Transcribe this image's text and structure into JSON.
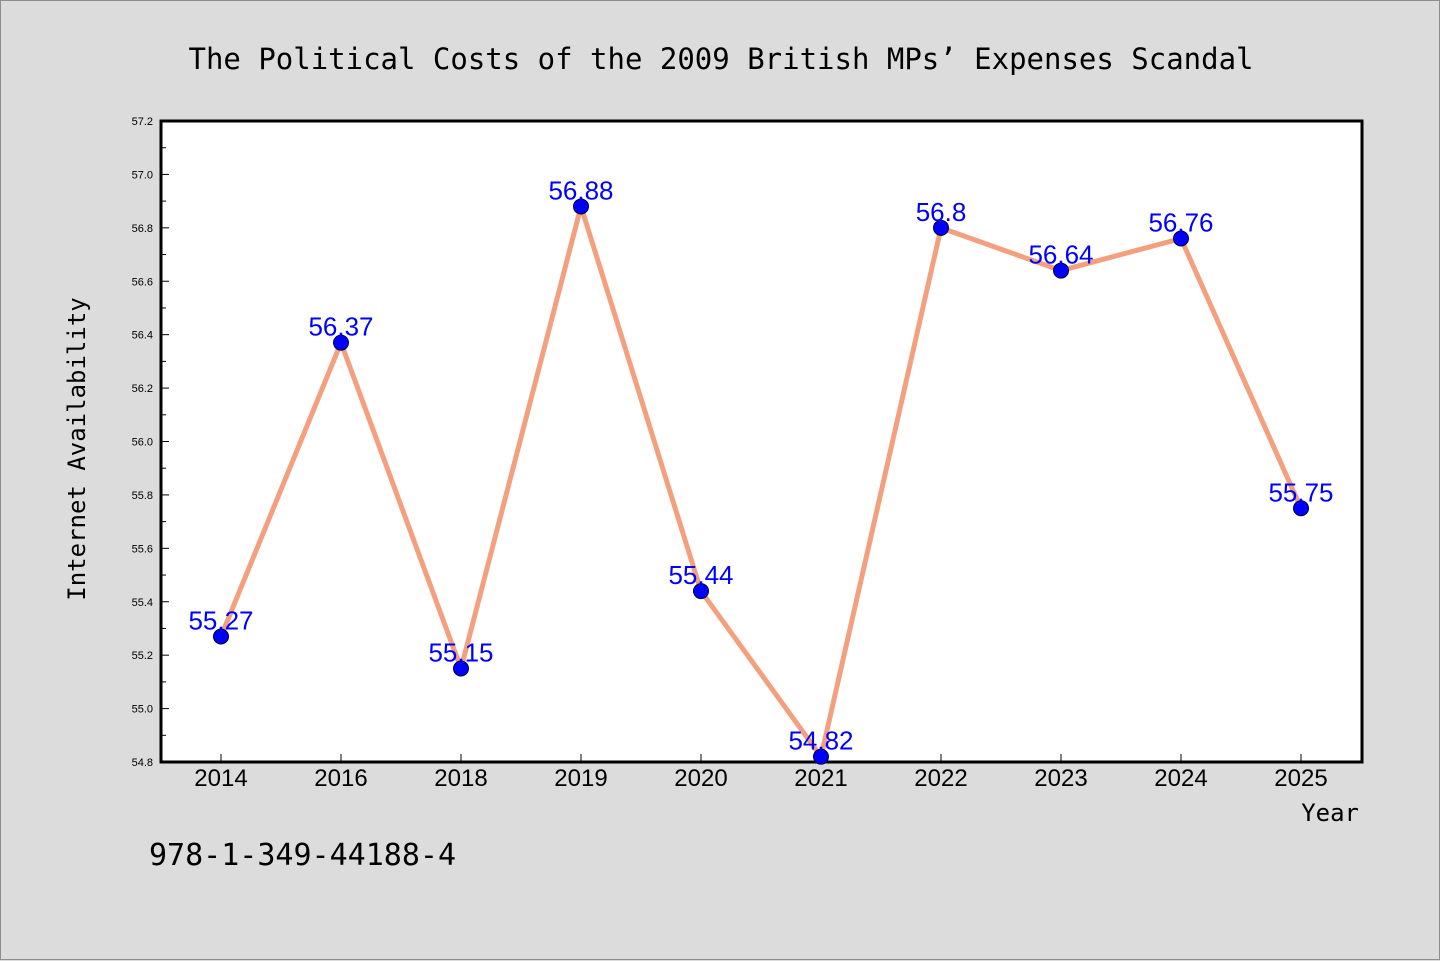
{
  "footer": {
    "code": "978-1-349-44188-4"
  },
  "colors": {
    "line": "#f4a07f",
    "marker": "#0000ff",
    "data_label": "#0000ff",
    "plot_background": "#ffffff",
    "page_background": "#dcdcdc"
  },
  "chart_data": {
    "type": "line",
    "title": "The Political Costs of the 2009 British MPs’ Expenses Scandal",
    "xlabel": "Year",
    "ylabel": "Internet Availability",
    "categories": [
      "2014",
      "2016",
      "2018",
      "2019",
      "2020",
      "2021",
      "2022",
      "2023",
      "2024",
      "2025"
    ],
    "series": [
      {
        "values": [
          55.27,
          56.37,
          55.15,
          56.88,
          55.44,
          54.82,
          56.8,
          56.64,
          56.76,
          55.75
        ],
        "labels": [
          "55.27",
          "56.37",
          "55.15",
          "56.88",
          "55.44",
          "54.82",
          "56.8",
          "56.64",
          "56.76",
          "55.75"
        ]
      }
    ],
    "ylim": [
      54.8,
      57.2
    ],
    "yticks": [
      "54.8",
      "55.0",
      "55.2",
      "55.4",
      "55.6",
      "55.8",
      "56.0",
      "56.2",
      "56.4",
      "56.6",
      "56.8",
      "57.0",
      "57.2"
    ],
    "grid": false,
    "legend": "none"
  }
}
